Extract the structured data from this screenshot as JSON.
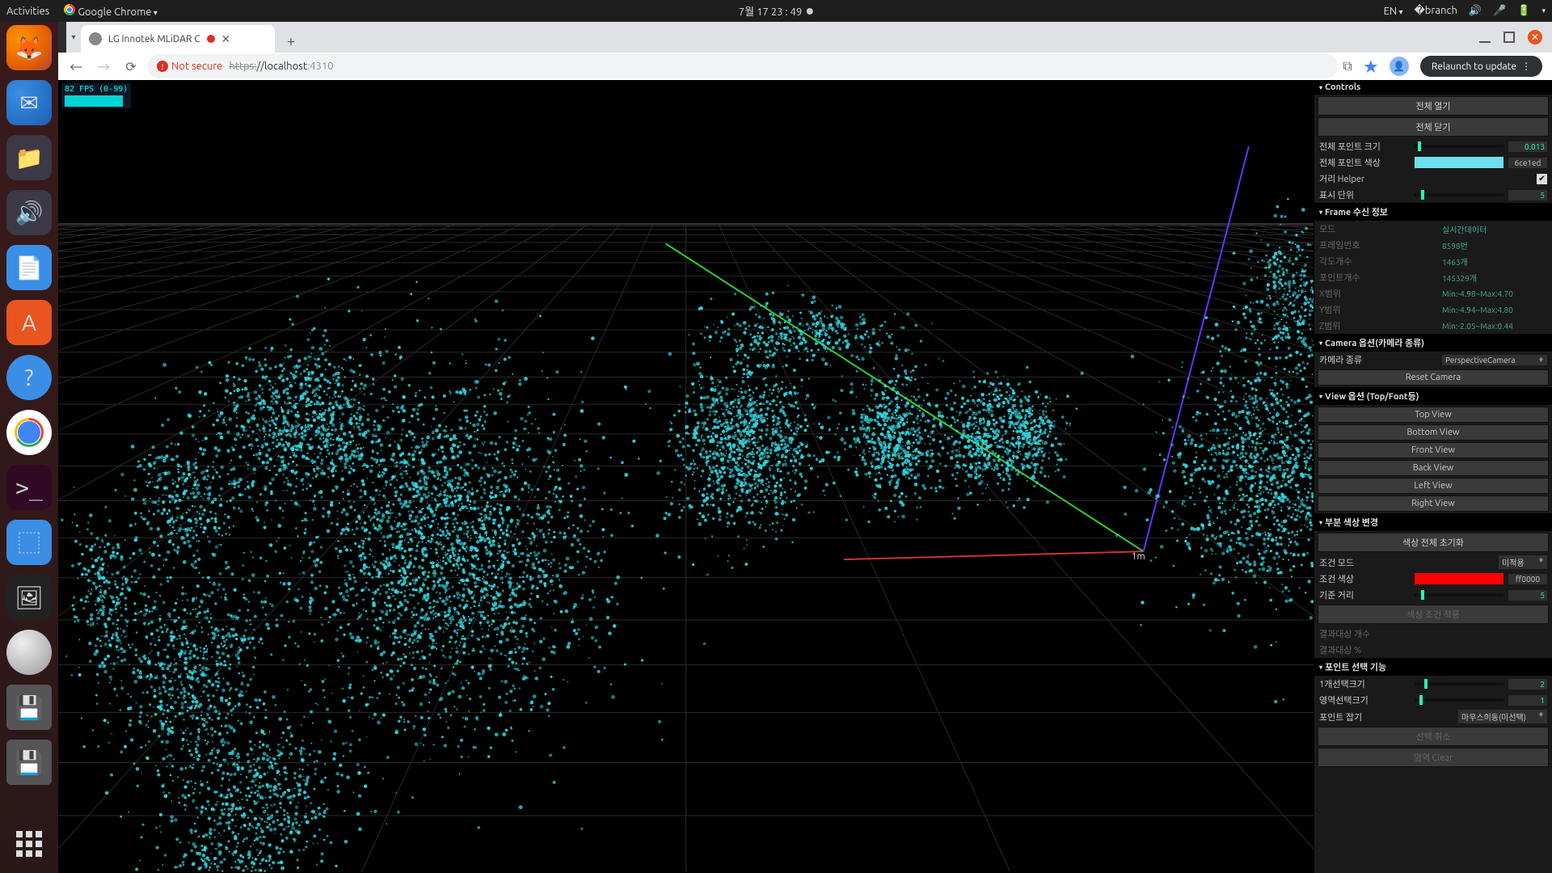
{
  "topbar": {
    "activities": "Activities",
    "app": "Google Chrome",
    "datetime": "7월 17  23 : 49",
    "lang": "EN"
  },
  "browser": {
    "tab_title": "LG Innotek MLiDAR C",
    "not_secure": "Not secure",
    "url_scheme": "https:",
    "url_host": "//localhost",
    "url_port": ":4310",
    "relaunch": "Relaunch to update"
  },
  "fps": {
    "text": "82 FPS (0-99)"
  },
  "sidebar": {
    "controls": {
      "header": "Controls",
      "open_all": "전체 열기",
      "close_all": "전체 닫기",
      "point_size_label": "전체 포인트 크기",
      "point_size_value": "0.013",
      "point_color_label": "전체 포인트 색상",
      "point_color_hex": "6ce1ed",
      "point_color": "#6ce1ed",
      "helper_label": "거리 Helper",
      "unit_label": "표시 단위",
      "unit_value": "5"
    },
    "frame": {
      "header": "Frame 수신 정보",
      "mode_label": "모드",
      "mode_value": "실시간데이터",
      "frame_label": "프레임번호",
      "frame_value": "8598번",
      "angle_label": "각도개수",
      "angle_value": "1463개",
      "point_label": "포인트개수",
      "point_value": "145329개",
      "x_label": "X범위",
      "x_value": "Min:-4.98~Max:4.70",
      "y_label": "Y범위",
      "y_value": "Min:-4.94~Max:4.80",
      "z_label": "Z범위",
      "z_value": "Min:-2.05~Max:0.44"
    },
    "camera": {
      "header": "Camera 옵션(카메라 종류)",
      "kind_label": "카메라 종류",
      "kind_value": "PerspectiveCamera",
      "reset": "Reset Camera"
    },
    "view": {
      "header": "View 옵션 (Top/Font등)",
      "top": "Top View",
      "bottom": "Bottom View",
      "front": "Front View",
      "back": "Back View",
      "left": "Left View",
      "right": "Right View"
    },
    "partial": {
      "header": "부분 색상 변경",
      "reset_color": "색상 전체 초기화",
      "cond_mode_label": "조건 모드",
      "cond_mode_value": "미적용",
      "cond_color_label": "조건 색상",
      "cond_color_hex": "ff0000",
      "cond_color": "#ff0000",
      "base_dist_label": "기준 거리",
      "base_dist_value": "5",
      "apply": "색상 조건 적용",
      "result_count_label": "결과대상 개수",
      "result_pct_label": "결과대상 %"
    },
    "select": {
      "header": "포인트 선택 기능",
      "one_label": "1개선택크기",
      "one_value": "2",
      "area_label": "영역선택크기",
      "area_value": "1",
      "grab_label": "포인트 잡기",
      "grab_value": "마우스이동(미선택)",
      "cancel": "선택 취소",
      "clear": "영역 Clear"
    }
  },
  "viewport_style": {
    "point_color": "#34d4dc",
    "axis_x": "#cc3333",
    "axis_y": "#33cc33",
    "axis_z": "#6633ff",
    "grid_color": "#2a2a2a",
    "background": "#000000"
  }
}
